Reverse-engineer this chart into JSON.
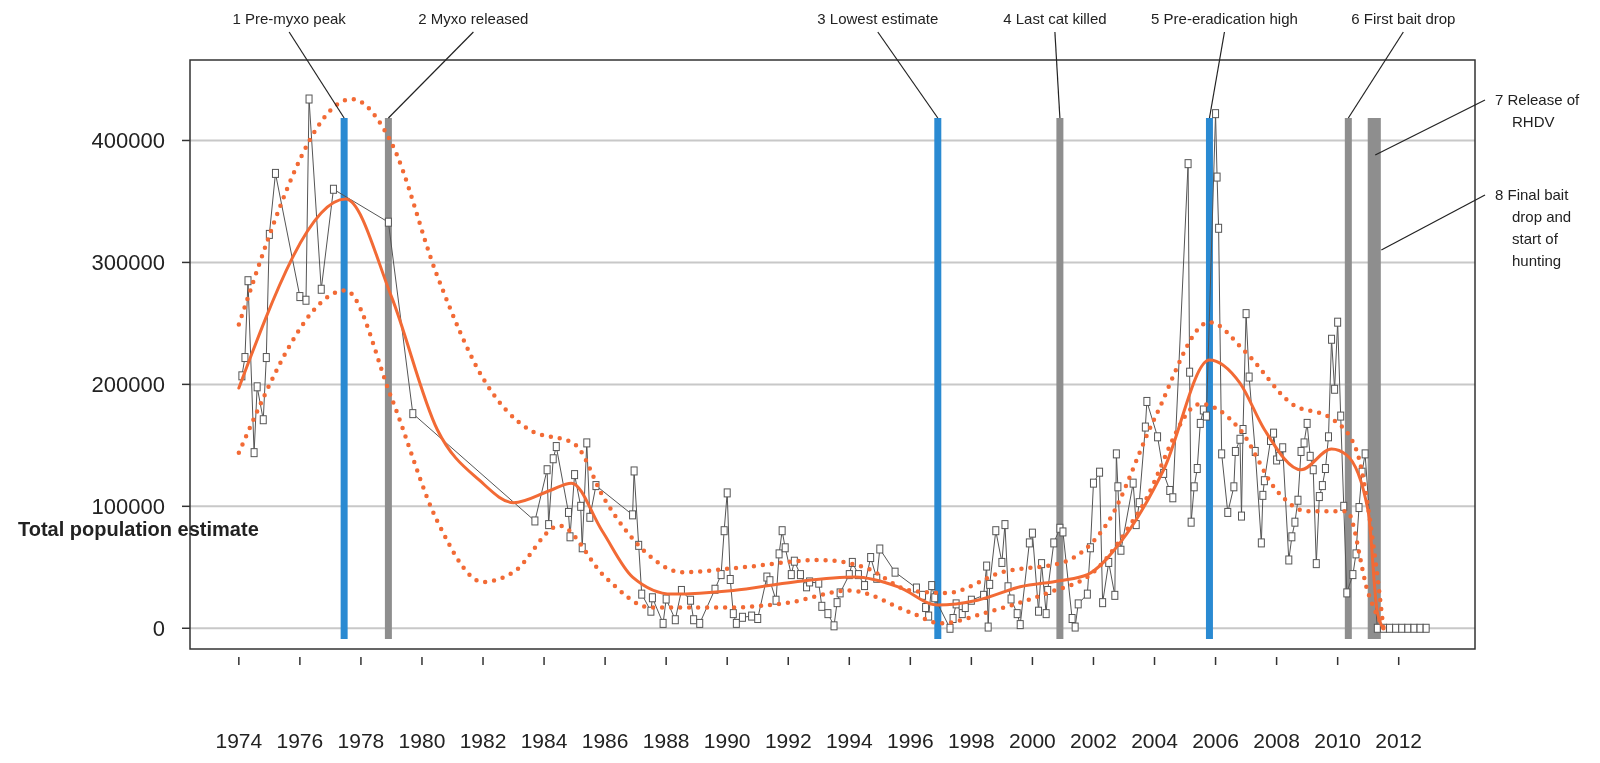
{
  "chart_data": {
    "type": "line",
    "ylabel": "Total population estimate",
    "xlim": [
      1972.4,
      2014.5
    ],
    "xticks": [
      1974,
      1976,
      1978,
      1980,
      1982,
      1984,
      1986,
      1988,
      1990,
      1992,
      1994,
      1996,
      1998,
      2000,
      2002,
      2004,
      2006,
      2008,
      2010,
      2012
    ],
    "ylim": [
      -17000,
      466000
    ],
    "yticks": [
      0,
      100000,
      200000,
      300000,
      400000
    ],
    "grid": "y",
    "series": [
      {
        "type": "line",
        "color": "#555555",
        "marker": "square",
        "x": [
          1974.1,
          1974.2,
          1974.3,
          1974.5,
          1974.6,
          1974.8,
          1974.9,
          1975.0,
          1975.2,
          1976.0,
          1976.2,
          1976.3,
          1976.7,
          1977.1,
          1978.9,
          1979.7,
          1983.7,
          1984.1,
          1984.15,
          1984.3,
          1984.4,
          1984.8,
          1984.85,
          1985.0,
          1985.2,
          1985.25,
          1985.4,
          1985.5,
          1985.7,
          1986.9,
          1986.95,
          1987.1,
          1987.2,
          1987.5,
          1987.55,
          1987.9,
          1988.0,
          1988.3,
          1988.5,
          1988.8,
          1988.9,
          1989.1,
          1989.6,
          1989.8,
          1989.9,
          1990.0,
          1990.1,
          1990.2,
          1990.3,
          1990.5,
          1990.8,
          1991.0,
          1991.3,
          1991.4,
          1991.6,
          1991.7,
          1991.8,
          1991.9,
          1992.1,
          1992.2,
          1992.4,
          1992.6,
          1992.7,
          1993.0,
          1993.1,
          1993.3,
          1993.5,
          1993.6,
          1993.7,
          1994.0,
          1994.1,
          1994.3,
          1994.5,
          1994.7,
          1994.9,
          1995.0,
          1995.5,
          1996.2,
          1996.4,
          1996.5,
          1996.6,
          1996.7,
          1996.8,
          1997.3,
          1997.4,
          1997.5,
          1997.7,
          1997.8,
          1998.0,
          1998.4,
          1998.5,
          1998.55,
          1998.6,
          1998.8,
          1999.0,
          1999.1,
          1999.2,
          1999.3,
          1999.5,
          1999.6,
          1999.9,
          2000.0,
          2000.2,
          2000.3,
          2000.45,
          2000.5,
          2000.7,
          2000.9,
          2001.0,
          2001.3,
          2001.4,
          2001.5,
          2001.8,
          2001.9,
          2002.0,
          2002.2,
          2002.3,
          2002.5,
          2002.7,
          2002.75,
          2002.8,
          2002.9,
          2003.3,
          2003.4,
          2003.5,
          2003.7,
          2003.75,
          2004.1,
          2004.3,
          2004.5,
          2004.6,
          2005.1,
          2005.15,
          2005.2,
          2005.3,
          2005.4,
          2005.5,
          2005.6,
          2005.7,
          2006.0,
          2006.05,
          2006.1,
          2006.2,
          2006.4,
          2006.6,
          2006.65,
          2006.8,
          2006.85,
          2006.9,
          2007.0,
          2007.1,
          2007.3,
          2007.5,
          2007.55,
          2007.6,
          2007.8,
          2007.9,
          2008.0,
          2008.1,
          2008.2,
          2008.4,
          2008.5,
          2008.6,
          2008.7,
          2008.8,
          2008.9,
          2009.0,
          2009.1,
          2009.2,
          2009.3,
          2009.4,
          2009.5,
          2009.6,
          2009.7,
          2009.8,
          2009.9,
          2010.0,
          2010.1,
          2010.2,
          2010.3,
          2010.5,
          2010.6,
          2010.7,
          2010.8,
          2010.9,
          2011.3,
          2011.5,
          2011.7,
          2011.9,
          2012.1,
          2012.3,
          2012.5,
          2012.7,
          2012.9
        ],
        "values": [
          207000,
          222000,
          285000,
          144000,
          198000,
          171000,
          222000,
          323000,
          373000,
          272000,
          269000,
          434000,
          278000,
          360000,
          333000,
          176000,
          88000,
          130000,
          85000,
          139000,
          149000,
          95000,
          75000,
          126000,
          100000,
          66000,
          152000,
          91000,
          117000,
          93000,
          129000,
          68000,
          28000,
          14000,
          25000,
          4000,
          24000,
          7000,
          31000,
          23000,
          7000,
          4000,
          32000,
          44000,
          80000,
          111000,
          40000,
          12000,
          4000,
          9000,
          10000,
          8000,
          42000,
          39000,
          23000,
          61000,
          80000,
          66000,
          44000,
          55000,
          44000,
          34000,
          38000,
          37000,
          18000,
          12000,
          2000,
          21000,
          29000,
          44000,
          54000,
          44000,
          35000,
          58000,
          41000,
          65000,
          46000,
          33000,
          27000,
          17000,
          10000,
          35000,
          25000,
          0,
          8000,
          20000,
          12000,
          17000,
          23000,
          27000,
          51000,
          1000,
          36000,
          80000,
          54000,
          85000,
          34000,
          24000,
          12000,
          3000,
          70000,
          78000,
          14000,
          53000,
          12000,
          31000,
          70000,
          82000,
          79000,
          8000,
          1000,
          20000,
          28000,
          66000,
          119000,
          128000,
          21000,
          54000,
          27000,
          143000,
          116000,
          64000,
          119000,
          85000,
          103000,
          165000,
          186000,
          157000,
          127000,
          113000,
          107000,
          381000,
          210000,
          87000,
          116000,
          131000,
          168000,
          179000,
          174000,
          422000,
          370000,
          328000,
          143000,
          95000,
          116000,
          145000,
          155000,
          92000,
          163000,
          258000,
          206000,
          145000,
          70000,
          109000,
          121000,
          154000,
          160000,
          138000,
          141000,
          148000,
          56000,
          75000,
          87000,
          105000,
          145000,
          152000,
          168000,
          141000,
          130000,
          53000,
          108000,
          117000,
          131000,
          157000,
          237000,
          196000,
          251000,
          174000,
          100000,
          29000,
          44000,
          61000,
          99000,
          128000,
          143000,
          0,
          0,
          0,
          0,
          0,
          0,
          0,
          0,
          0
        ]
      },
      {
        "type": "line",
        "color": "#f26a35",
        "line_style": "solid",
        "x": [
          1974,
          1977.5,
          1979,
          1980.5,
          1981.9,
          1983,
          1984.2,
          1984.9,
          1985.9,
          1986.9,
          1988.2,
          1990.2,
          1992.2,
          1994.2,
          1995.6,
          1996.9,
          1998.2,
          1999.6,
          2000.9,
          2001.8,
          2002.9,
          2004.3,
          2005.8,
          2006.8,
          2007.6,
          2008.8,
          2009.8,
          2010.3,
          2011,
          2011.3,
          2011.5
        ],
        "values": [
          197000,
          352000,
          272000,
          163000,
          121000,
          103000,
          113000,
          119000,
          80000,
          42000,
          28000,
          31000,
          38000,
          42000,
          34000,
          19000,
          23000,
          34000,
          39000,
          44000,
          71000,
          130000,
          220000,
          201000,
          163000,
          130000,
          147000,
          142000,
          96000,
          13000,
          0
        ]
      },
      {
        "type": "line",
        "color": "#f26a35",
        "line_style": "dotted",
        "x": [
          1974,
          1977.7,
          1979,
          1980.5,
          1982,
          1983.5,
          1985,
          1986,
          1987.3,
          1988.5,
          1990.5,
          1993,
          1994.5,
          1996,
          1997.2,
          1999,
          2001,
          2002.5,
          2004,
          2005.8,
          2007,
          2008.5,
          2009.8,
          2010.6,
          2011.2,
          2011.5
        ],
        "values": [
          249000,
          434000,
          398000,
          289000,
          205000,
          163000,
          151000,
          105000,
          63000,
          46000,
          50000,
          56000,
          50000,
          31000,
          29000,
          46000,
          54000,
          88000,
          172000,
          251000,
          226000,
          184000,
          172000,
          147000,
          63000,
          0
        ]
      },
      {
        "type": "line",
        "color": "#f26a35",
        "line_style": "dotted",
        "x": [
          1974,
          1977.5,
          1979,
          1980.5,
          1982,
          1983,
          1984.5,
          1986,
          1987.5,
          1990,
          1992,
          1994,
          1996,
          1997,
          1998.5,
          2000.5,
          2002,
          2003.5,
          2005.5,
          2006.8,
          2008,
          2009,
          2010.3,
          2011,
          2011.5
        ],
        "values": [
          144000,
          277000,
          189000,
          88000,
          38000,
          46000,
          84000,
          42000,
          17000,
          17000,
          21000,
          31000,
          13000,
          4000,
          13000,
          29000,
          46000,
          96000,
          184000,
          163000,
          113000,
          96000,
          96000,
          29000,
          0
        ]
      }
    ],
    "ref_lines": [
      {
        "axis": "x",
        "value": 1977.45,
        "label": "1 Pre-myxo peak",
        "color": "#2a8ad2"
      },
      {
        "axis": "x",
        "value": 1978.9,
        "label": "2 Myxo released",
        "color": "#8e8e8e"
      },
      {
        "axis": "x",
        "value": 1996.9,
        "label": "3 Lowest estimate",
        "color": "#2a8ad2"
      },
      {
        "axis": "x",
        "value": 2000.9,
        "label": "4 Last cat killed",
        "color": "#8e8e8e"
      },
      {
        "axis": "x",
        "value": 2005.8,
        "label": "5 Pre-eradication high",
        "color": "#2a8ad2"
      },
      {
        "axis": "x",
        "value": 2010.35,
        "label": "6 First bait drop",
        "color": "#8e8e8e"
      },
      {
        "axis": "x",
        "value": 2011.1,
        "label": "7 Release of RHDV",
        "color": "#8e8e8e"
      },
      {
        "axis": "x",
        "value": 2011.3,
        "label": "8 Final bait drop and start of hunting",
        "color": "#8e8e8e"
      }
    ]
  }
}
